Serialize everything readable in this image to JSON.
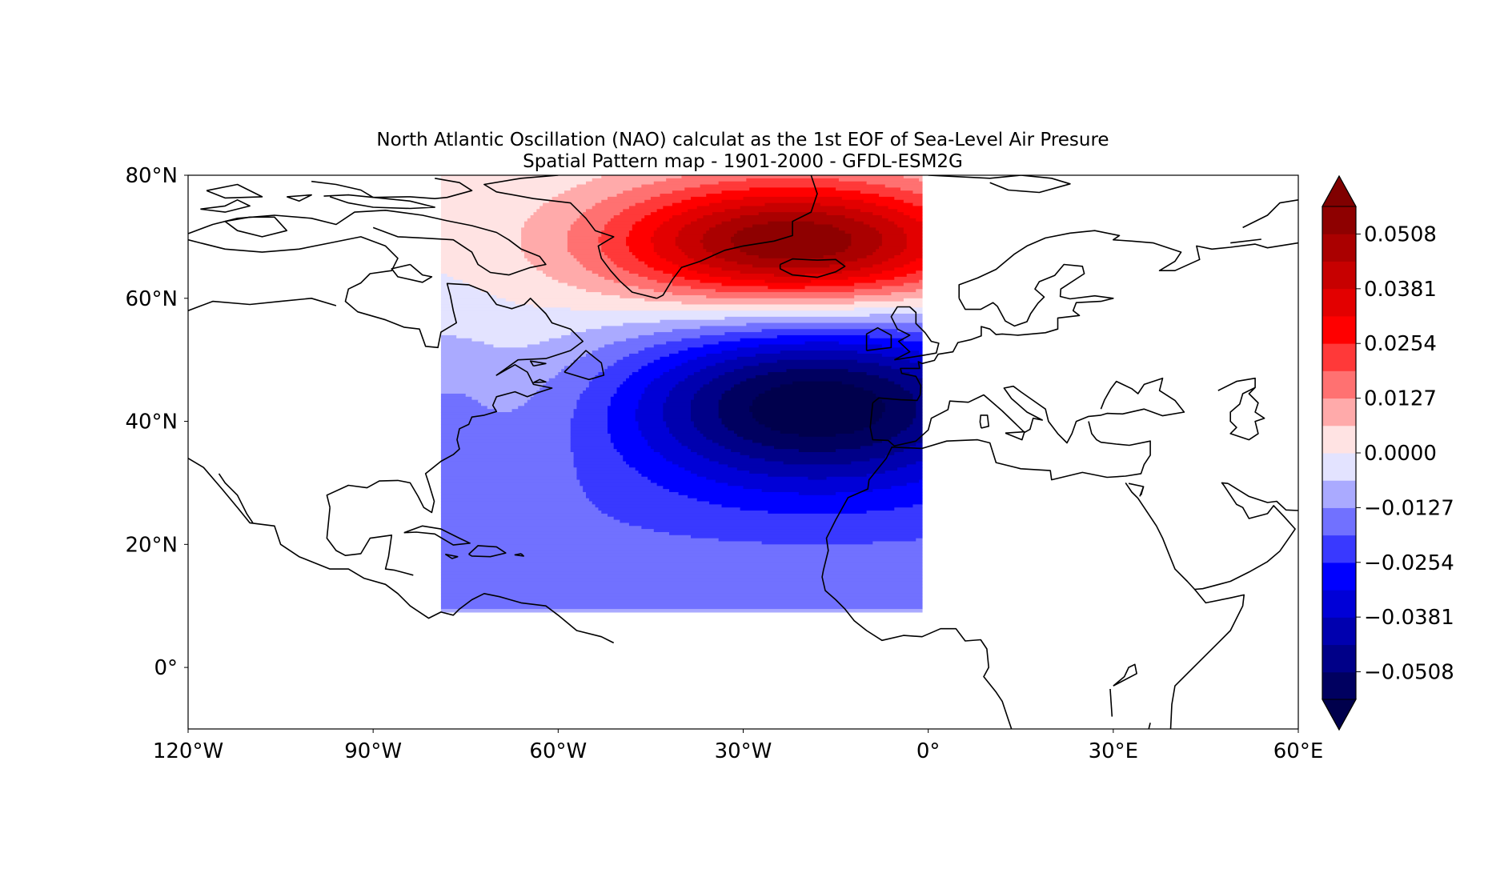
{
  "title": {
    "line1": "North Atlantic Oscillation (NAO) calculat as the 1st EOF of Sea-Level Air Presure",
    "line2": "Spatial Pattern map - 1901-2000 - GFDL-ESM2G"
  },
  "map": {
    "projection": "PlateCarree",
    "lon_range": [
      -120,
      60
    ],
    "lat_range": [
      -10,
      80
    ],
    "data_extent": {
      "lon": [
        -79,
        -1
      ],
      "lat": [
        9,
        80
      ]
    },
    "x_ticks": [
      {
        "value": -120,
        "label": "120°W"
      },
      {
        "value": -90,
        "label": "90°W"
      },
      {
        "value": -60,
        "label": "60°W"
      },
      {
        "value": -30,
        "label": "30°W"
      },
      {
        "value": 0,
        "label": "0°"
      },
      {
        "value": 30,
        "label": "30°E"
      },
      {
        "value": 60,
        "label": "60°E"
      }
    ],
    "y_ticks": [
      {
        "value": 80,
        "label": "80°N"
      },
      {
        "value": 60,
        "label": "60°N"
      },
      {
        "value": 40,
        "label": "40°N"
      },
      {
        "value": 20,
        "label": "20°N"
      },
      {
        "value": 0,
        "label": "0°"
      }
    ],
    "field_model": {
      "negative_center": {
        "lon": -18,
        "lat": 43,
        "value": -0.06
      },
      "positive_center": {
        "lon": -22,
        "lat": 69,
        "value": 0.058
      },
      "zero_line_lat": 56
    }
  },
  "colorbar": {
    "colormap": "seismic",
    "extend": "both",
    "levels_min": -0.0572,
    "levels_max": 0.0572,
    "n_levels": 18,
    "ticks": [
      {
        "value": 0.0508,
        "label": "0.0508"
      },
      {
        "value": 0.0381,
        "label": "0.0381"
      },
      {
        "value": 0.0254,
        "label": "0.0254"
      },
      {
        "value": 0.0127,
        "label": "0.0127"
      },
      {
        "value": 0.0,
        "label": "0.0000"
      },
      {
        "value": -0.0127,
        "label": "−0.0127"
      },
      {
        "value": -0.0254,
        "label": "−0.0254"
      },
      {
        "value": -0.0381,
        "label": "−0.0381"
      },
      {
        "value": -0.0508,
        "label": "−0.0508"
      }
    ]
  }
}
